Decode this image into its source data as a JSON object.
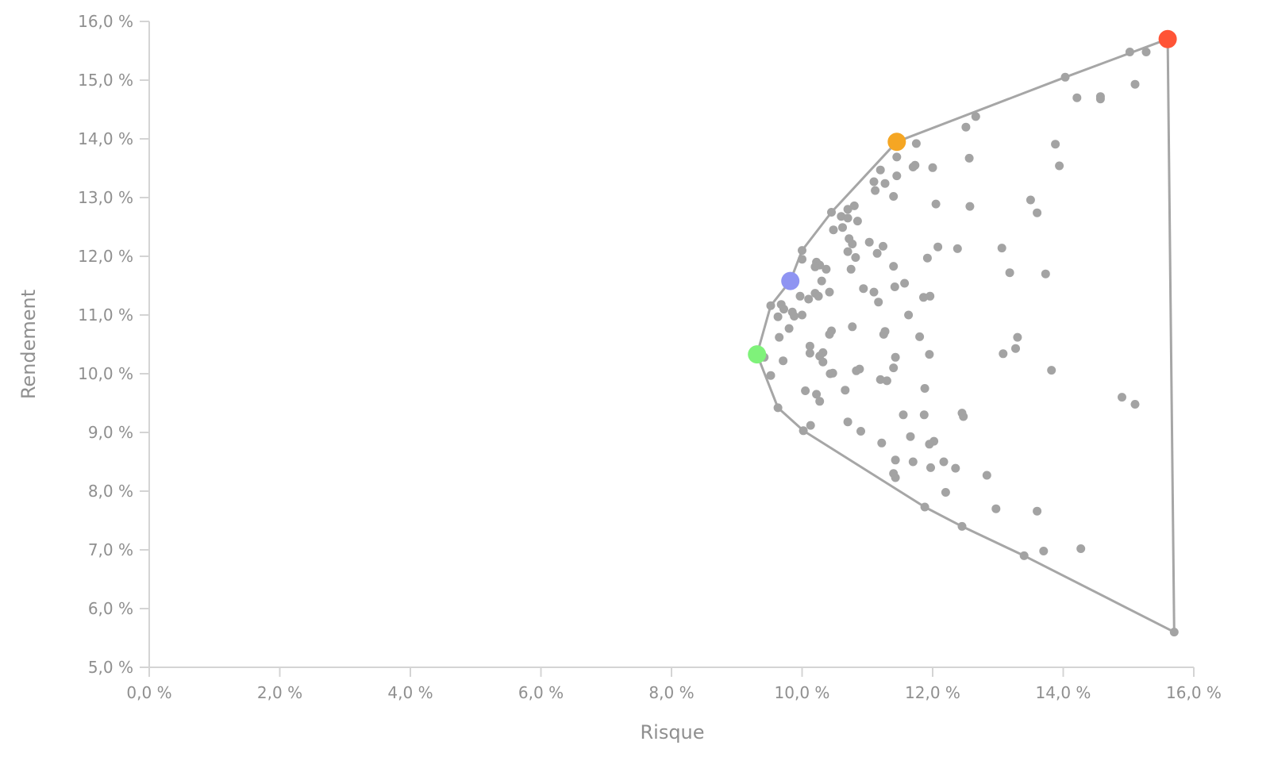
{
  "chart_data": {
    "type": "scatter",
    "xlabel": "Risque",
    "ylabel": "Rendement",
    "xlim": [
      0,
      16
    ],
    "ylim": [
      5,
      16
    ],
    "x_ticks": [
      {
        "value": 0,
        "label": "0,0 %"
      },
      {
        "value": 2,
        "label": "2,0 %"
      },
      {
        "value": 4,
        "label": "4,0 %"
      },
      {
        "value": 6,
        "label": "6,0 %"
      },
      {
        "value": 8,
        "label": "8,0 %"
      },
      {
        "value": 10,
        "label": "10,0 %"
      },
      {
        "value": 12,
        "label": "12,0 %"
      },
      {
        "value": 14,
        "label": "14,0 %"
      },
      {
        "value": 16,
        "label": "16,0 %"
      }
    ],
    "y_ticks": [
      {
        "value": 5,
        "label": "5,0 %"
      },
      {
        "value": 6,
        "label": "6,0 %"
      },
      {
        "value": 7,
        "label": "7,0 %"
      },
      {
        "value": 8,
        "label": "8,0 %"
      },
      {
        "value": 9,
        "label": "9,0 %"
      },
      {
        "value": 10,
        "label": "10,0 %"
      },
      {
        "value": 11,
        "label": "11,0 %"
      },
      {
        "value": 12,
        "label": "12,0 %"
      },
      {
        "value": 13,
        "label": "13,0 %"
      },
      {
        "value": 14,
        "label": "14,0 %"
      },
      {
        "value": 15,
        "label": "15,0 %"
      },
      {
        "value": 16,
        "label": "16,0 %"
      }
    ],
    "grid": false,
    "colors": {
      "axis": "#d4d4d4",
      "text": "#8f8f8f",
      "frontier": "#a6a6a6",
      "points": "#a3a3a3",
      "min_risk": "#7ff27a",
      "lower_mid": "#8f94f2",
      "upper_mid": "#f5a623",
      "max_return": "#ff5436"
    },
    "frontier": [
      {
        "x": 15.6,
        "y": 15.7
      },
      {
        "x": 15.7,
        "y": 5.6
      },
      {
        "x": 13.4,
        "y": 6.9
      },
      {
        "x": 12.45,
        "y": 7.4
      },
      {
        "x": 11.88,
        "y": 7.73
      },
      {
        "x": 10.02,
        "y": 9.03
      },
      {
        "x": 9.63,
        "y": 9.42
      },
      {
        "x": 9.31,
        "y": 10.33
      },
      {
        "x": 9.52,
        "y": 11.16
      },
      {
        "x": 9.82,
        "y": 11.58
      },
      {
        "x": 10.0,
        "y": 12.1
      },
      {
        "x": 10.45,
        "y": 12.75
      },
      {
        "x": 11.45,
        "y": 13.95
      },
      {
        "x": 14.03,
        "y": 15.05
      },
      {
        "x": 15.6,
        "y": 15.7
      }
    ],
    "highlighted_points": [
      {
        "x": 9.31,
        "y": 10.33,
        "color": "#7ff27a"
      },
      {
        "x": 9.82,
        "y": 11.58,
        "color": "#8f94f2"
      },
      {
        "x": 11.45,
        "y": 13.95,
        "color": "#f5a623"
      },
      {
        "x": 15.6,
        "y": 15.7,
        "color": "#ff5436"
      }
    ],
    "points": [
      [
        15.02,
        15.48
      ],
      [
        15.27,
        15.48
      ],
      [
        14.03,
        15.05
      ],
      [
        15.1,
        14.93
      ],
      [
        14.21,
        14.7
      ],
      [
        14.57,
        14.72
      ],
      [
        14.57,
        14.68
      ],
      [
        12.66,
        14.38
      ],
      [
        12.51,
        14.2
      ],
      [
        11.75,
        13.92
      ],
      [
        13.88,
        13.91
      ],
      [
        11.45,
        13.69
      ],
      [
        12.56,
        13.67
      ],
      [
        13.94,
        13.54
      ],
      [
        11.7,
        13.52
      ],
      [
        11.73,
        13.55
      ],
      [
        12.0,
        13.51
      ],
      [
        11.2,
        13.47
      ],
      [
        11.45,
        13.37
      ],
      [
        11.1,
        13.27
      ],
      [
        11.27,
        13.24
      ],
      [
        11.12,
        13.12
      ],
      [
        11.4,
        13.02
      ],
      [
        13.5,
        12.96
      ],
      [
        12.05,
        12.89
      ],
      [
        12.57,
        12.85
      ],
      [
        10.45,
        12.75
      ],
      [
        10.8,
        12.86
      ],
      [
        10.7,
        12.8
      ],
      [
        13.6,
        12.74
      ],
      [
        10.6,
        12.68
      ],
      [
        10.7,
        12.65
      ],
      [
        10.85,
        12.6
      ],
      [
        10.62,
        12.49
      ],
      [
        10.48,
        12.45
      ],
      [
        10.72,
        12.3
      ],
      [
        10.77,
        12.21
      ],
      [
        11.03,
        12.24
      ],
      [
        11.24,
        12.17
      ],
      [
        12.08,
        12.16
      ],
      [
        12.38,
        12.13
      ],
      [
        13.06,
        12.14
      ],
      [
        10.0,
        12.1
      ],
      [
        10.7,
        12.08
      ],
      [
        11.15,
        12.05
      ],
      [
        10.0,
        11.95
      ],
      [
        10.82,
        11.98
      ],
      [
        11.92,
        11.97
      ],
      [
        10.22,
        11.9
      ],
      [
        10.27,
        11.85
      ],
      [
        10.2,
        11.82
      ],
      [
        11.4,
        11.83
      ],
      [
        10.37,
        11.78
      ],
      [
        10.75,
        11.78
      ],
      [
        13.18,
        11.72
      ],
      [
        13.73,
        11.7
      ],
      [
        10.3,
        11.58
      ],
      [
        11.57,
        11.54
      ],
      [
        11.42,
        11.48
      ],
      [
        10.94,
        11.45
      ],
      [
        11.1,
        11.39
      ],
      [
        10.42,
        11.39
      ],
      [
        10.2,
        11.37
      ],
      [
        10.25,
        11.32
      ],
      [
        9.97,
        11.32
      ],
      [
        11.86,
        11.3
      ],
      [
        11.96,
        11.32
      ],
      [
        10.1,
        11.27
      ],
      [
        11.17,
        11.22
      ],
      [
        9.52,
        11.16
      ],
      [
        9.68,
        11.18
      ],
      [
        9.72,
        11.1
      ],
      [
        9.85,
        11.05
      ],
      [
        9.88,
        10.98
      ],
      [
        10.0,
        11.0
      ],
      [
        9.63,
        10.97
      ],
      [
        11.63,
        11.0
      ],
      [
        10.77,
        10.8
      ],
      [
        9.8,
        10.77
      ],
      [
        10.45,
        10.73
      ],
      [
        10.42,
        10.67
      ],
      [
        11.27,
        10.72
      ],
      [
        11.25,
        10.67
      ],
      [
        11.8,
        10.63
      ],
      [
        13.3,
        10.62
      ],
      [
        9.65,
        10.62
      ],
      [
        10.12,
        10.47
      ],
      [
        13.27,
        10.43
      ],
      [
        10.32,
        10.36
      ],
      [
        10.12,
        10.35
      ],
      [
        13.08,
        10.34
      ],
      [
        11.95,
        10.33
      ],
      [
        9.42,
        10.28
      ],
      [
        11.43,
        10.28
      ],
      [
        10.27,
        10.3
      ],
      [
        9.71,
        10.22
      ],
      [
        10.32,
        10.2
      ],
      [
        11.4,
        10.1
      ],
      [
        10.88,
        10.08
      ],
      [
        10.83,
        10.05
      ],
      [
        13.82,
        10.06
      ],
      [
        10.47,
        10.01
      ],
      [
        10.43,
        10.0
      ],
      [
        9.52,
        9.97
      ],
      [
        11.2,
        9.9
      ],
      [
        11.3,
        9.88
      ],
      [
        11.88,
        9.75
      ],
      [
        10.66,
        9.72
      ],
      [
        10.05,
        9.71
      ],
      [
        10.22,
        9.65
      ],
      [
        14.9,
        9.6
      ],
      [
        10.27,
        9.53
      ],
      [
        15.1,
        9.48
      ],
      [
        9.63,
        9.42
      ],
      [
        12.45,
        9.33
      ],
      [
        12.47,
        9.27
      ],
      [
        11.55,
        9.3
      ],
      [
        11.87,
        9.3
      ],
      [
        10.7,
        9.18
      ],
      [
        10.13,
        9.12
      ],
      [
        10.9,
        9.02
      ],
      [
        10.02,
        9.03
      ],
      [
        11.66,
        8.93
      ],
      [
        12.02,
        8.85
      ],
      [
        11.95,
        8.8
      ],
      [
        11.22,
        8.82
      ],
      [
        11.43,
        8.53
      ],
      [
        12.17,
        8.5
      ],
      [
        11.7,
        8.5
      ],
      [
        11.97,
        8.4
      ],
      [
        12.35,
        8.39
      ],
      [
        11.4,
        8.3
      ],
      [
        11.43,
        8.23
      ],
      [
        12.83,
        8.27
      ],
      [
        12.2,
        7.98
      ],
      [
        12.97,
        7.7
      ],
      [
        13.6,
        7.66
      ],
      [
        11.88,
        7.73
      ],
      [
        12.45,
        7.4
      ],
      [
        14.27,
        7.02
      ],
      [
        13.7,
        6.98
      ],
      [
        13.4,
        6.9
      ],
      [
        15.7,
        5.6
      ]
    ]
  }
}
